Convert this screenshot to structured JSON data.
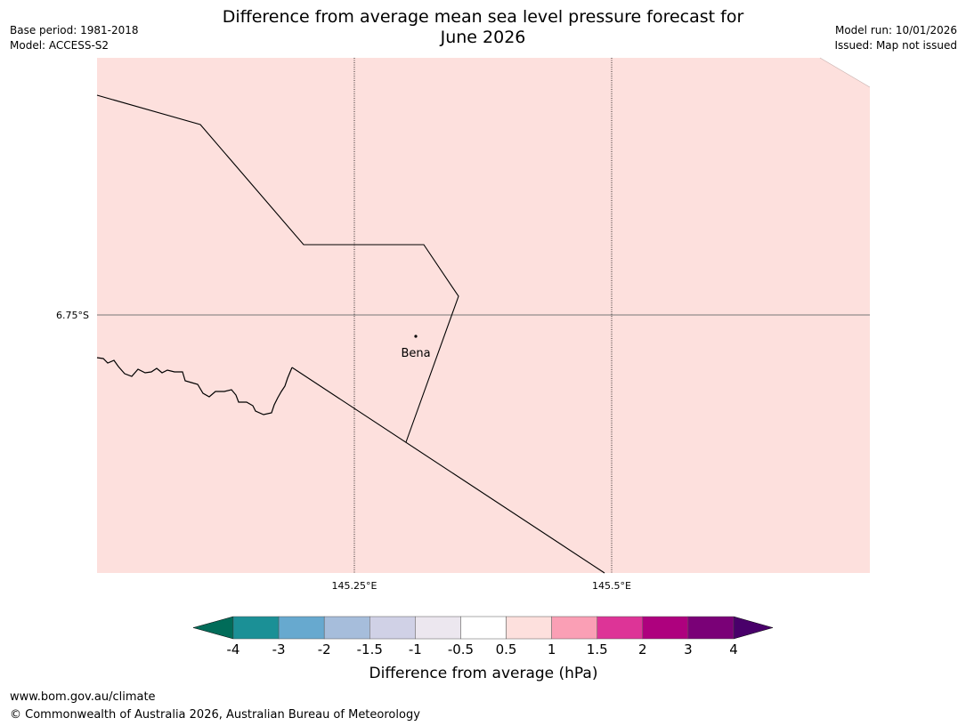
{
  "header": {
    "title_line1": "Difference from average mean sea level pressure forecast for",
    "title_line2": "June 2026",
    "base_period": "Base period: 1981-2018",
    "model": "Model: ACCESS-S2",
    "model_run": "Model run: 10/01/2026",
    "issued": "Issued: Map not issued"
  },
  "map": {
    "fill_color": "#fde0dd",
    "lat_label": "6.75°S",
    "lon_labels": [
      "145.25°E",
      "145.5°E"
    ],
    "place": {
      "name": "Bena"
    }
  },
  "legend": {
    "label": "Difference from average (hPa)",
    "ticks": [
      "-4",
      "-3",
      "-2",
      "-1.5",
      "-1",
      "-0.5",
      "0.5",
      "1",
      "1.5",
      "2",
      "3",
      "4"
    ],
    "under_color": "#016c59",
    "over_color": "#49006a",
    "colors": [
      "#1b9096",
      "#67a9cf",
      "#a6bddb",
      "#d0d1e6",
      "#ece7ef",
      "#ffffff",
      "#fde0dd",
      "#fa9fb5",
      "#dd3497",
      "#ae017e",
      "#7a0177"
    ]
  },
  "footer": {
    "url": "www.bom.gov.au/climate",
    "copyright": "© Commonwealth of Australia 2026, Australian Bureau of Meteorology"
  }
}
